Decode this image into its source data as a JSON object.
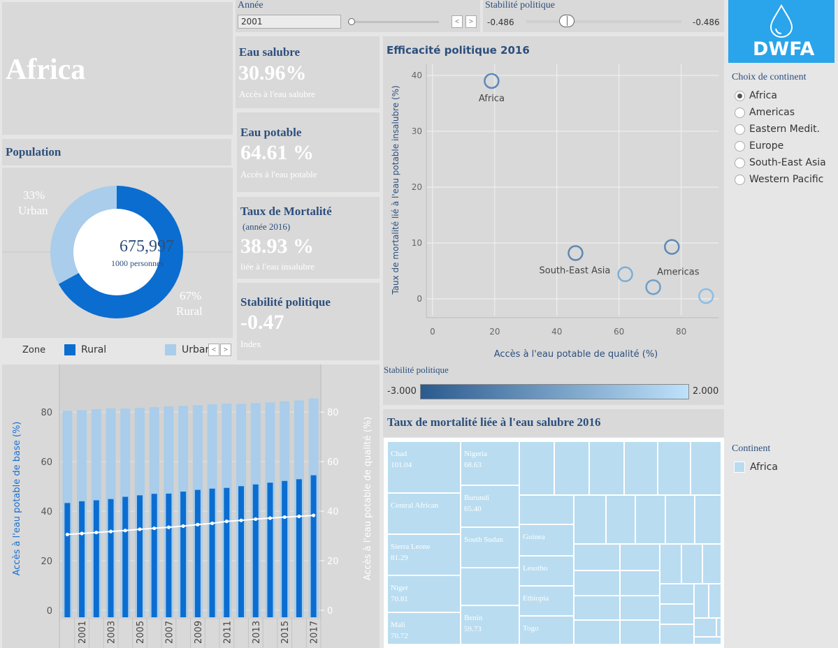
{
  "title": "Africa",
  "controls": {
    "year_label": "Année",
    "year_value": "2001",
    "year_prev": "<",
    "year_next": ">",
    "stability_label": "Stabilité politique",
    "stability_min": "-0.486",
    "stability_max": "-0.486"
  },
  "logo": {
    "text": "DWFA"
  },
  "population": {
    "title": "Population",
    "urban_pct": "33%",
    "urban_label": "Urban",
    "rural_pct": "67%",
    "rural_label": "Rural",
    "total": "675,997",
    "total_unit": "1000 personnes",
    "rural_share": 0.67,
    "colors": {
      "rural": "#0b6dd0",
      "urban": "#a9cdea"
    }
  },
  "kpis": {
    "safe_water": {
      "title": "Eau salubre",
      "value": "30.96%",
      "subtitle": "Accès à l'eau salubre"
    },
    "drinking_water": {
      "title": "Eau potable",
      "value": "64.61 %",
      "subtitle": "Accès à l'eau potable"
    },
    "mortality": {
      "title": "Taux de Mortalité",
      "note": "(année 2016)",
      "value": "38.93 %",
      "subtitle": "liée à l'eau insalubre"
    },
    "stability": {
      "title": "Stabilité politique",
      "value": "-0.47",
      "subtitle": "Index"
    }
  },
  "legend_zone": {
    "label": "Zone",
    "rural": "Rural",
    "urban": "Urbar",
    "prev": "<",
    "next": ">"
  },
  "continent_filter": {
    "title": "Choix de continent",
    "options": [
      "Africa",
      "Americas",
      "Eastern Medit.",
      "Europe",
      "South-East Asia",
      "Western Pacific"
    ],
    "selected": "Africa"
  },
  "continent_legend": {
    "title": "Continent",
    "item": "Africa",
    "color": "#b9dcf0"
  },
  "scatter_stability": {
    "label": "Stabilité politique",
    "min": "-3.000",
    "max": "2.000"
  },
  "treemap": {
    "title": "Taux de mortalité liée à l'eau salubre 2016",
    "labelled": [
      {
        "name": "Chad",
        "value": "101.04"
      },
      {
        "name": "Central African",
        "value": ""
      },
      {
        "name": "Sierra Leone",
        "value": "81.29"
      },
      {
        "name": "Niger",
        "value": "70.81"
      },
      {
        "name": "Mali",
        "value": "70.72"
      },
      {
        "name": "Nigeria",
        "value": "68.63"
      },
      {
        "name": "Burundi",
        "value": "65.40"
      },
      {
        "name": "South Sudan",
        "value": ""
      },
      {
        "name": "Benin",
        "value": "59.73"
      },
      {
        "name": "Guinea",
        "value": ""
      },
      {
        "name": "Lesotho",
        "value": ""
      },
      {
        "name": "Ethiopia",
        "value": ""
      },
      {
        "name": "Togo",
        "value": ""
      }
    ]
  },
  "chart_data": [
    {
      "type": "scatter",
      "title": "Efficacité politique 2016",
      "xlabel": "Accès à l'eau potable de qualité (%)",
      "ylabel": "Taux de mortalité lié à l'eau potable insalubre (%)",
      "xlim": [
        -2,
        92
      ],
      "ylim": [
        -3,
        42
      ],
      "xticks": [
        0,
        20,
        40,
        60,
        80
      ],
      "yticks": [
        0,
        10,
        20,
        30,
        40
      ],
      "grid": true,
      "points": [
        {
          "x": 19,
          "y": 39,
          "label": "Africa"
        },
        {
          "x": 46,
          "y": 8.2,
          "label": "South-East Asia"
        },
        {
          "x": 62,
          "y": 4.4,
          "label": ""
        },
        {
          "x": 77,
          "y": 9.3,
          "label": "Americas"
        },
        {
          "x": 71,
          "y": 2.1,
          "label": ""
        },
        {
          "x": 88,
          "y": 0.5,
          "label": ""
        }
      ]
    },
    {
      "type": "bar",
      "title": "",
      "xlabel": "",
      "ylabel": "Accès à l'eau potable de base (%)",
      "ylabel_right": "Accès à l'eau potable de qualité (%)",
      "ylim": [
        0,
        93
      ],
      "yticks": [
        0,
        20,
        40,
        60,
        80
      ],
      "categories": [
        2000,
        2001,
        2002,
        2003,
        2004,
        2005,
        2006,
        2007,
        2008,
        2009,
        2010,
        2011,
        2012,
        2013,
        2014,
        2015,
        2016,
        2017
      ],
      "xtick_labels": [
        "2001",
        "2003",
        "2005",
        "2007",
        "2009",
        "2011",
        "2013",
        "2015",
        "2017"
      ],
      "series": [
        {
          "name": "Urban",
          "color": "#a9cdea",
          "values": [
            80.5,
            80.8,
            81.2,
            81.5,
            81.4,
            81.7,
            82,
            82.3,
            82.5,
            82.8,
            83.1,
            83.4,
            83.3,
            83.6,
            83.9,
            84.3,
            84.7,
            85.5
          ]
        },
        {
          "name": "Rural",
          "color": "#0b6dd0",
          "values": [
            43.3,
            44,
            44.4,
            44.9,
            45.8,
            46.4,
            47,
            47.1,
            47.9,
            48.6,
            49.1,
            49.4,
            50.1,
            50.8,
            51.5,
            52.2,
            52.9,
            54.5
          ]
        },
        {
          "name": "",
          "color": "#ffffff",
          "values": [
            30.6,
            31,
            31.4,
            31.8,
            32.2,
            32.7,
            33.1,
            33.5,
            34,
            34.6,
            35.1,
            35.9,
            36.3,
            36.8,
            37.2,
            37.6,
            37.9,
            38.3
          ]
        }
      ]
    }
  ]
}
